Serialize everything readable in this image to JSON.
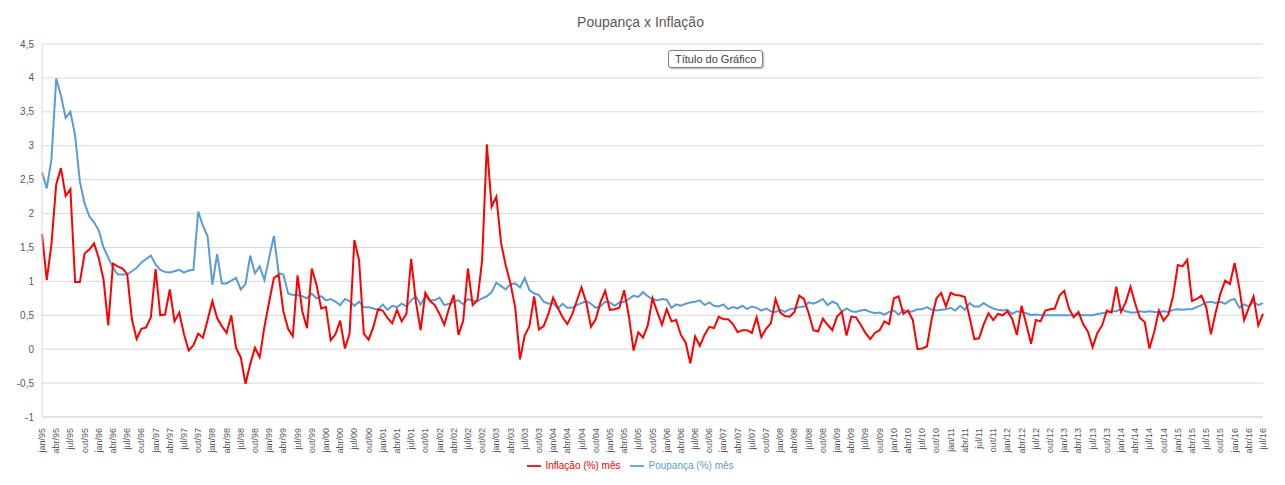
{
  "chart_data": {
    "type": "line",
    "title": "Poupança x Inflação",
    "annotation": "Título do Gráfico",
    "categories": [
      "jan/95",
      null,
      null,
      "abr/95",
      null,
      null,
      "jul/95",
      null,
      null,
      "out/95",
      null,
      null,
      "jan/96",
      null,
      null,
      "abr/96",
      null,
      null,
      "jul/96",
      null,
      null,
      "out/96",
      null,
      null,
      "jan/97",
      null,
      null,
      "abr/97",
      null,
      null,
      "jul/97",
      null,
      null,
      "out/97",
      null,
      null,
      "jan/98",
      null,
      null,
      "abr/98",
      null,
      null,
      "jul/98",
      null,
      null,
      "out/98",
      null,
      null,
      "jan/99",
      null,
      null,
      "abr/99",
      null,
      null,
      "jul/99",
      null,
      null,
      "out/99",
      null,
      null,
      "jan/00",
      null,
      null,
      "abr/00",
      null,
      null,
      "jul/00",
      null,
      null,
      "out/00",
      null,
      null,
      "jan/01",
      null,
      null,
      "abr/01",
      null,
      null,
      "jul/01",
      null,
      null,
      "out/01",
      null,
      null,
      "jan/02",
      null,
      null,
      "abr/02",
      null,
      null,
      "jul/02",
      null,
      null,
      "out/02",
      null,
      null,
      "jan/03",
      null,
      null,
      "abr/03",
      null,
      null,
      "jul/03",
      null,
      null,
      "out/03",
      null,
      null,
      "jan/04",
      null,
      null,
      "abr/04",
      null,
      null,
      "jul/04",
      null,
      null,
      "out/04",
      null,
      null,
      "jan/05",
      null,
      null,
      "abr/05",
      null,
      null,
      "jul/05",
      null,
      null,
      "out/05",
      null,
      null,
      "jan/06",
      null,
      null,
      "abr/06",
      null,
      null,
      "jul/06",
      null,
      null,
      "out/06",
      null,
      null,
      "jan/07",
      null,
      null,
      "abr/07",
      null,
      null,
      "jul/07",
      null,
      null,
      "out/07",
      null,
      null,
      "jan/08",
      null,
      null,
      "abr/08",
      null,
      null,
      "jul/08",
      null,
      null,
      "out/08",
      null,
      null,
      "jan/09",
      null,
      null,
      "abr/09",
      null,
      null,
      "jul/09",
      null,
      null,
      "out/09",
      null,
      null,
      "jan/10",
      null,
      null,
      "abr/10",
      null,
      null,
      "jul/10",
      null,
      null,
      "out/10",
      null,
      null,
      "jan/11",
      null,
      null,
      "abr/11",
      null,
      null,
      "jul/11",
      null,
      null,
      "out/11",
      null,
      null,
      "jan/12",
      null,
      null,
      "abr/12",
      null,
      null,
      "jul/12",
      null,
      null,
      "out/12",
      null,
      null,
      "jan/13",
      null,
      null,
      "abr/13",
      null,
      null,
      "jul/13",
      null,
      null,
      "out/13",
      null,
      null,
      "jan/14",
      null,
      null,
      "abr/14",
      null,
      null,
      "jul/14",
      null,
      null,
      "out/14",
      null,
      null,
      "jan/15",
      null,
      null,
      "abr/15",
      null,
      null,
      "jul/15",
      null,
      null,
      "out/15",
      null,
      null,
      "jan/16",
      null,
      null,
      "abr/16",
      null,
      null,
      "jul/16"
    ],
    "series": [
      {
        "name": "Poupança (%) mês",
        "color": "#5b9bd5",
        "values": [
          2.61,
          2.37,
          2.8,
          3.99,
          3.74,
          3.41,
          3.5,
          3.15,
          2.47,
          2.15,
          1.96,
          1.87,
          1.75,
          1.5,
          1.35,
          1.2,
          1.1,
          1.1,
          1.1,
          1.15,
          1.2,
          1.28,
          1.33,
          1.38,
          1.25,
          1.17,
          1.14,
          1.13,
          1.15,
          1.17,
          1.13,
          1.16,
          1.17,
          2.03,
          1.82,
          1.66,
          0.95,
          1.4,
          0.97,
          0.97,
          1.01,
          1.05,
          0.88,
          0.96,
          1.38,
          1.12,
          1.22,
          1.02,
          1.35,
          1.67,
          1.12,
          1.1,
          0.82,
          0.8,
          0.8,
          0.78,
          0.75,
          0.82,
          0.75,
          0.78,
          0.72,
          0.74,
          0.7,
          0.65,
          0.74,
          0.71,
          0.64,
          0.7,
          0.62,
          0.62,
          0.6,
          0.58,
          0.66,
          0.58,
          0.64,
          0.62,
          0.67,
          0.63,
          0.72,
          0.78,
          0.66,
          0.78,
          0.72,
          0.72,
          0.76,
          0.65,
          0.67,
          0.7,
          0.72,
          0.66,
          0.74,
          0.71,
          0.71,
          0.75,
          0.78,
          0.84,
          0.98,
          0.93,
          0.88,
          0.96,
          0.97,
          0.91,
          1.05,
          0.87,
          0.82,
          0.8,
          0.7,
          0.67,
          0.68,
          0.6,
          0.67,
          0.61,
          0.61,
          0.65,
          0.68,
          0.71,
          0.67,
          0.61,
          0.63,
          0.7,
          0.69,
          0.64,
          0.69,
          0.7,
          0.74,
          0.79,
          0.77,
          0.84,
          0.78,
          0.74,
          0.72,
          0.74,
          0.73,
          0.61,
          0.66,
          0.64,
          0.67,
          0.69,
          0.7,
          0.72,
          0.65,
          0.69,
          0.64,
          0.63,
          0.66,
          0.59,
          0.62,
          0.6,
          0.64,
          0.59,
          0.63,
          0.61,
          0.57,
          0.6,
          0.56,
          0.55,
          0.58,
          0.55,
          0.59,
          0.6,
          0.62,
          0.63,
          0.69,
          0.67,
          0.7,
          0.74,
          0.65,
          0.7,
          0.67,
          0.55,
          0.6,
          0.56,
          0.55,
          0.57,
          0.58,
          0.55,
          0.53,
          0.54,
          0.51,
          0.55,
          0.57,
          0.51,
          0.58,
          0.55,
          0.56,
          0.59,
          0.59,
          0.62,
          0.58,
          0.57,
          0.58,
          0.59,
          0.61,
          0.57,
          0.64,
          0.58,
          0.68,
          0.63,
          0.63,
          0.68,
          0.63,
          0.6,
          0.58,
          0.57,
          0.58,
          0.52,
          0.56,
          0.55,
          0.53,
          0.5,
          0.51,
          0.5,
          0.5,
          0.5,
          0.5,
          0.5,
          0.5,
          0.5,
          0.5,
          0.51,
          0.5,
          0.5,
          0.5,
          0.52,
          0.53,
          0.54,
          0.56,
          0.56,
          0.59,
          0.56,
          0.54,
          0.54,
          0.56,
          0.55,
          0.56,
          0.55,
          0.55,
          0.56,
          0.55,
          0.58,
          0.59,
          0.58,
          0.59,
          0.59,
          0.62,
          0.65,
          0.69,
          0.7,
          0.68,
          0.7,
          0.67,
          0.72,
          0.74,
          0.61,
          0.66,
          0.63,
          0.7,
          0.65,
          0.68
        ]
      },
      {
        "name": "Inflação (%) mês",
        "color": "#ff0000",
        "values": [
          1.7,
          1.02,
          1.55,
          2.43,
          2.67,
          2.26,
          2.36,
          0.99,
          0.99,
          1.41,
          1.47,
          1.56,
          1.34,
          1.03,
          0.35,
          1.26,
          1.22,
          1.19,
          1.11,
          0.44,
          0.15,
          0.3,
          0.32,
          0.47,
          1.18,
          0.5,
          0.51,
          0.88,
          0.41,
          0.54,
          0.22,
          -0.02,
          0.06,
          0.23,
          0.17,
          0.43,
          0.71,
          0.46,
          0.34,
          0.24,
          0.5,
          0.02,
          -0.12,
          -0.51,
          -0.22,
          0.02,
          -0.12,
          0.33,
          0.7,
          1.05,
          1.1,
          0.56,
          0.3,
          0.19,
          1.09,
          0.56,
          0.31,
          1.19,
          0.95,
          0.6,
          0.62,
          0.13,
          0.22,
          0.42,
          0.01,
          0.23,
          1.61,
          1.31,
          0.23,
          0.14,
          0.32,
          0.59,
          0.57,
          0.46,
          0.38,
          0.58,
          0.41,
          0.52,
          1.33,
          0.7,
          0.28,
          0.83,
          0.71,
          0.65,
          0.52,
          0.36,
          0.6,
          0.8,
          0.21,
          0.42,
          1.19,
          0.65,
          0.72,
          1.31,
          3.02,
          2.1,
          2.25,
          1.57,
          1.23,
          0.97,
          0.61,
          -0.15,
          0.2,
          0.34,
          0.78,
          0.29,
          0.34,
          0.52,
          0.76,
          0.61,
          0.47,
          0.37,
          0.51,
          0.71,
          0.91,
          0.69,
          0.33,
          0.44,
          0.69,
          0.86,
          0.58,
          0.59,
          0.61,
          0.87,
          0.49,
          -0.02,
          0.25,
          0.17,
          0.35,
          0.75,
          0.55,
          0.36,
          0.59,
          0.41,
          0.43,
          0.21,
          0.1,
          -0.21,
          0.19,
          0.05,
          0.21,
          0.33,
          0.31,
          0.48,
          0.44,
          0.44,
          0.37,
          0.25,
          0.28,
          0.28,
          0.24,
          0.47,
          0.18,
          0.3,
          0.38,
          0.74,
          0.54,
          0.49,
          0.48,
          0.55,
          0.79,
          0.74,
          0.53,
          0.28,
          0.26,
          0.45,
          0.36,
          0.28,
          0.48,
          0.55,
          0.2,
          0.48,
          0.47,
          0.36,
          0.24,
          0.15,
          0.24,
          0.28,
          0.41,
          0.37,
          0.75,
          0.78,
          0.52,
          0.57,
          0.43,
          0.0,
          0.01,
          0.04,
          0.45,
          0.75,
          0.83,
          0.63,
          0.83,
          0.8,
          0.79,
          0.77,
          0.47,
          0.15,
          0.16,
          0.37,
          0.53,
          0.43,
          0.52,
          0.5,
          0.56,
          0.45,
          0.21,
          0.64,
          0.36,
          0.08,
          0.43,
          0.41,
          0.57,
          0.59,
          0.6,
          0.79,
          0.86,
          0.6,
          0.47,
          0.55,
          0.37,
          0.26,
          0.03,
          0.24,
          0.35,
          0.57,
          0.54,
          0.92,
          0.55,
          0.69,
          0.92,
          0.67,
          0.46,
          0.4,
          0.01,
          0.25,
          0.57,
          0.42,
          0.51,
          0.78,
          1.24,
          1.22,
          1.32,
          0.71,
          0.74,
          0.79,
          0.62,
          0.22,
          0.54,
          0.82,
          1.01,
          0.96,
          1.27,
          0.9,
          0.43,
          0.61,
          0.78,
          0.35,
          0.52
        ]
      }
    ],
    "ylim": [
      -1,
      4.5
    ],
    "yticks": [
      -1,
      {
        "value": -0.5,
        "label": "-0,5"
      },
      0,
      {
        "value": 0.5,
        "label": "0,5"
      },
      1,
      {
        "value": 1.5,
        "label": "1,5"
      },
      2,
      {
        "value": 2.5,
        "label": "2,5"
      },
      3,
      {
        "value": 3.5,
        "label": "3,5"
      },
      4,
      {
        "value": 4.5,
        "label": "4,5"
      }
    ],
    "grid": true,
    "legend": "bottom"
  }
}
